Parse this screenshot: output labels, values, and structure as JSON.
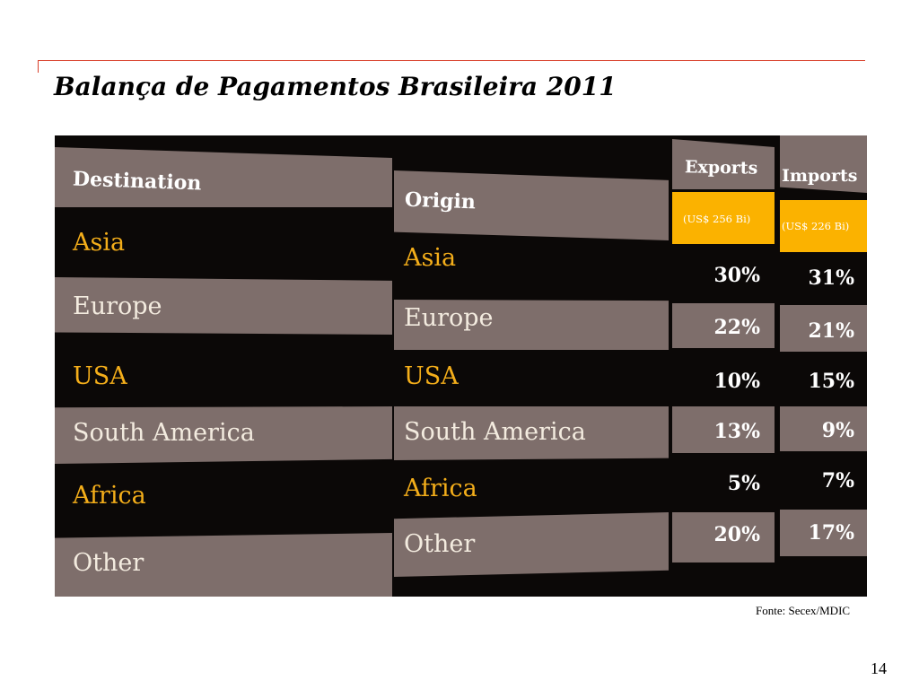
{
  "slide": {
    "title": "Balança de Pagamentos Brasileira 2011",
    "source": "Fonte: Secex/MDIC",
    "page_number": "14"
  },
  "table": {
    "destination_header": "Destination",
    "origin_header": "Origin",
    "exports_header": "Exports",
    "imports_header": "Imports",
    "exports_unit": "(US$ 256 Bi)",
    "imports_unit": "(US$ 226 Bi)",
    "rows": [
      {
        "destination": "Asia",
        "origin": "Asia",
        "exports": "30%",
        "imports": "31%"
      },
      {
        "destination": "Europe",
        "origin": "Europe",
        "exports": "22%",
        "imports": "21%"
      },
      {
        "destination": "USA",
        "origin": "USA",
        "exports": "10%",
        "imports": "15%"
      },
      {
        "destination": "South America",
        "origin": "South America",
        "exports": "13%",
        "imports": "9%"
      },
      {
        "destination": "Africa",
        "origin": "Africa",
        "exports": "5%",
        "imports": "7%"
      },
      {
        "destination": "Other",
        "origin": "Other",
        "exports": "20%",
        "imports": "17%"
      }
    ]
  },
  "colors": {
    "accent_rule": "#d9402b",
    "label_on_dark": "#f4ae1a",
    "unit_box": "#fbb200",
    "band_grey": "#7e6e6b"
  }
}
